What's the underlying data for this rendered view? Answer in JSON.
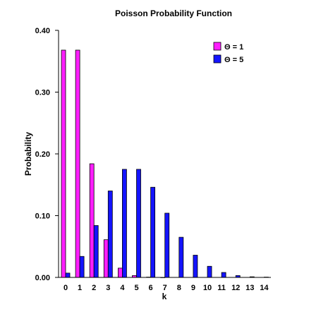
{
  "chart_data": {
    "type": "bar",
    "title": "Poisson Probability Function",
    "xlabel": "k",
    "ylabel": "Probability",
    "categories": [
      "0",
      "1",
      "2",
      "3",
      "4",
      "5",
      "6",
      "7",
      "8",
      "9",
      "10",
      "11",
      "12",
      "13",
      "14"
    ],
    "series": [
      {
        "name": "Θ = 1",
        "color": "#ff1eff",
        "values": [
          0.368,
          0.368,
          0.184,
          0.061,
          0.015,
          0.003,
          0.0005,
          0.0001,
          0,
          0,
          0,
          0,
          0,
          0,
          0
        ]
      },
      {
        "name": "Θ = 5",
        "color": "#1414ff",
        "values": [
          0.007,
          0.034,
          0.084,
          0.14,
          0.175,
          0.175,
          0.146,
          0.104,
          0.065,
          0.036,
          0.018,
          0.008,
          0.003,
          0.001,
          0.0005
        ]
      }
    ],
    "ylim": [
      0,
      0.4
    ],
    "yticks": [
      "0.00",
      "0.10",
      "0.20",
      "0.30",
      "0.40"
    ],
    "grid": false,
    "legend_position": "top-right"
  }
}
